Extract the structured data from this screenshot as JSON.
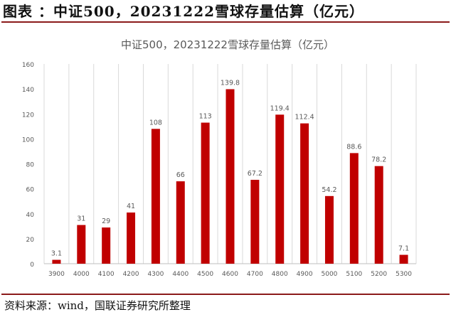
{
  "figure_title": "图表 ：中证500，20231222雪球存量估算（亿元）",
  "source_note": "资料来源：wind，国联证券研究所整理",
  "colors": {
    "bar": "#c00000",
    "grid": "#d9d9d9",
    "text": "#595959",
    "accent_rule": "#8b1a1a"
  },
  "chart_data": {
    "type": "bar",
    "title": "中证500，20231222雪球存量估算（亿元）",
    "xlabel": "",
    "ylabel": "",
    "categories": [
      "3900",
      "4000",
      "4100",
      "4200",
      "4300",
      "4400",
      "4500",
      "4600",
      "4700",
      "4800",
      "4900",
      "5000",
      "5100",
      "5200",
      "5300"
    ],
    "values": [
      3.1,
      31,
      29,
      41,
      108,
      66,
      113,
      139.8,
      67.2,
      119.4,
      112.4,
      54.2,
      88.6,
      78.2,
      7.1
    ],
    "data_labels": [
      "3.1",
      "31",
      "29",
      "41",
      "108",
      "66",
      "113",
      "139.8",
      "67.2",
      "119.4",
      "112.4",
      "54.2",
      "88.6",
      "78.2",
      "7.1"
    ],
    "y_ticks": [
      "0",
      "20",
      "40",
      "60",
      "80",
      "100",
      "120",
      "140",
      "160"
    ],
    "ylim": [
      0,
      160
    ],
    "grid": "vertical",
    "legend": "none"
  }
}
